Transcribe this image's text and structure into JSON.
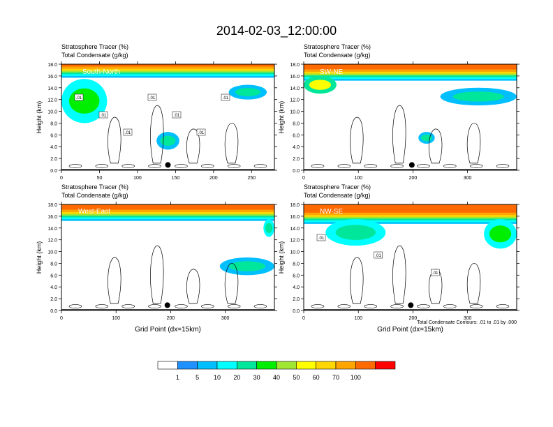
{
  "title": "2014-02-03_12:00:00",
  "chart_data": [
    {
      "type": "heatmap",
      "panel": "South-North",
      "title_lines": [
        "Stratosphere Tracer   (%)",
        "Total Condensate   (g/kg)"
      ],
      "ylabel": "Height (km)",
      "xlabel": "",
      "xlim": [
        0,
        280
      ],
      "xticks": [
        0,
        50,
        100,
        150,
        200,
        250
      ],
      "ylim": [
        0,
        18
      ],
      "yticks": [
        "0.0",
        "2.0",
        "4.0",
        "6.0",
        "8.0",
        "10.0",
        "12.0",
        "14.0",
        "16.0",
        "18.0"
      ],
      "marker_x": 140,
      "contour_labels": [
        ".01",
        ".01",
        ".01",
        ".01",
        ".01",
        ".01",
        ".01"
      ],
      "stratosphere_layer": {
        "bottom_km": 16.0,
        "top_km": 18.0
      },
      "features": [
        {
          "x": [
            0,
            60
          ],
          "y_km": [
            8.0,
            15.5
          ],
          "tracer_pct": 15
        },
        {
          "x": [
            220,
            270
          ],
          "y_km": [
            12.0,
            14.5
          ],
          "tracer_pct": 8
        },
        {
          "x": [
            125,
            155
          ],
          "y_km": [
            3.5,
            6.5
          ],
          "tracer_pct": 8
        }
      ]
    },
    {
      "type": "heatmap",
      "panel": "SW-NE",
      "title_lines": [
        "Stratosphere Tracer   (%)",
        "Total Condensate   (g/kg)"
      ],
      "ylabel": "Height (km)",
      "xlabel": "",
      "xlim": [
        0,
        390
      ],
      "xticks": [
        0,
        100,
        200,
        300
      ],
      "ylim": [
        0,
        18
      ],
      "yticks": [
        "0.0",
        "2.0",
        "4.0",
        "6.0",
        "8.0",
        "10.0",
        "12.0",
        "14.0",
        "16.0",
        "18.0"
      ],
      "marker_x": 198,
      "contour_labels": [],
      "stratosphere_layer": {
        "bottom_km": 15.5,
        "top_km": 18.0
      },
      "features": [
        {
          "x": [
            0,
            60
          ],
          "y_km": [
            13.0,
            16.0
          ],
          "tracer_pct": 20
        },
        {
          "x": [
            250,
            390
          ],
          "y_km": [
            11.0,
            14.0
          ],
          "tracer_pct": 8
        },
        {
          "x": [
            210,
            240
          ],
          "y_km": [
            4.5,
            6.5
          ],
          "tracer_pct": 8
        }
      ]
    },
    {
      "type": "heatmap",
      "panel": "West-East",
      "title_lines": [
        "Stratosphere Tracer   (%)",
        "Total Condensate   (g/kg)"
      ],
      "ylabel": "Height (km)",
      "xlabel": "Grid Point (dx=15km)",
      "xlim": [
        0,
        390
      ],
      "xticks": [
        0,
        100,
        200,
        300
      ],
      "ylim": [
        0,
        18
      ],
      "yticks": [
        "0.0",
        "2.0",
        "4.0",
        "6.0",
        "8.0",
        "10.0",
        "12.0",
        "14.0",
        "16.0",
        "18.0"
      ],
      "marker_x": 194,
      "contour_labels": [],
      "stratosphere_layer": {
        "bottom_km": 15.5,
        "top_km": 18.0
      },
      "features": [
        {
          "x": [
            290,
            390
          ],
          "y_km": [
            6.0,
            9.0
          ],
          "tracer_pct": 8
        },
        {
          "x": [
            370,
            390
          ],
          "y_km": [
            12.5,
            15.5
          ],
          "tracer_pct": 10
        }
      ]
    },
    {
      "type": "heatmap",
      "panel": "NW-SE",
      "title_lines": [
        "Stratosphere Tracer   (%)",
        "Total Condensate   (g/kg)"
      ],
      "ylabel": "Height (km)",
      "xlabel": "Grid Point (dx=15km)",
      "footnote": "Total Condensate Contours: .01 to .01 by .000",
      "xlim": [
        0,
        390
      ],
      "xticks": [
        0,
        100,
        200,
        300
      ],
      "ylim": [
        0,
        18
      ],
      "yticks": [
        "0.0",
        "2.0",
        "4.0",
        "6.0",
        "8.0",
        "10.0",
        "12.0",
        "14.0",
        "16.0",
        "18.0"
      ],
      "marker_x": 196,
      "contour_labels": [
        ".01",
        ".01",
        ".01"
      ],
      "stratosphere_layer": {
        "bottom_km": 15.0,
        "top_km": 18.0
      },
      "features": [
        {
          "x": [
            40,
            150
          ],
          "y_km": [
            11.0,
            15.5
          ],
          "tracer_pct": 10
        },
        {
          "x": [
            330,
            390
          ],
          "y_km": [
            10.5,
            15.5
          ],
          "tracer_pct": 12
        }
      ]
    }
  ],
  "colorbar": {
    "levels": [
      "1",
      "5",
      "10",
      "20",
      "30",
      "40",
      "50",
      "60",
      "70",
      "100"
    ],
    "colors": [
      "#ffffff",
      "#1e90ff",
      "#00bfff",
      "#00ffff",
      "#00e69a",
      "#00ee00",
      "#a0e632",
      "#ffff00",
      "#ffd700",
      "#ffa500",
      "#ff6a00",
      "#ff0000"
    ]
  }
}
